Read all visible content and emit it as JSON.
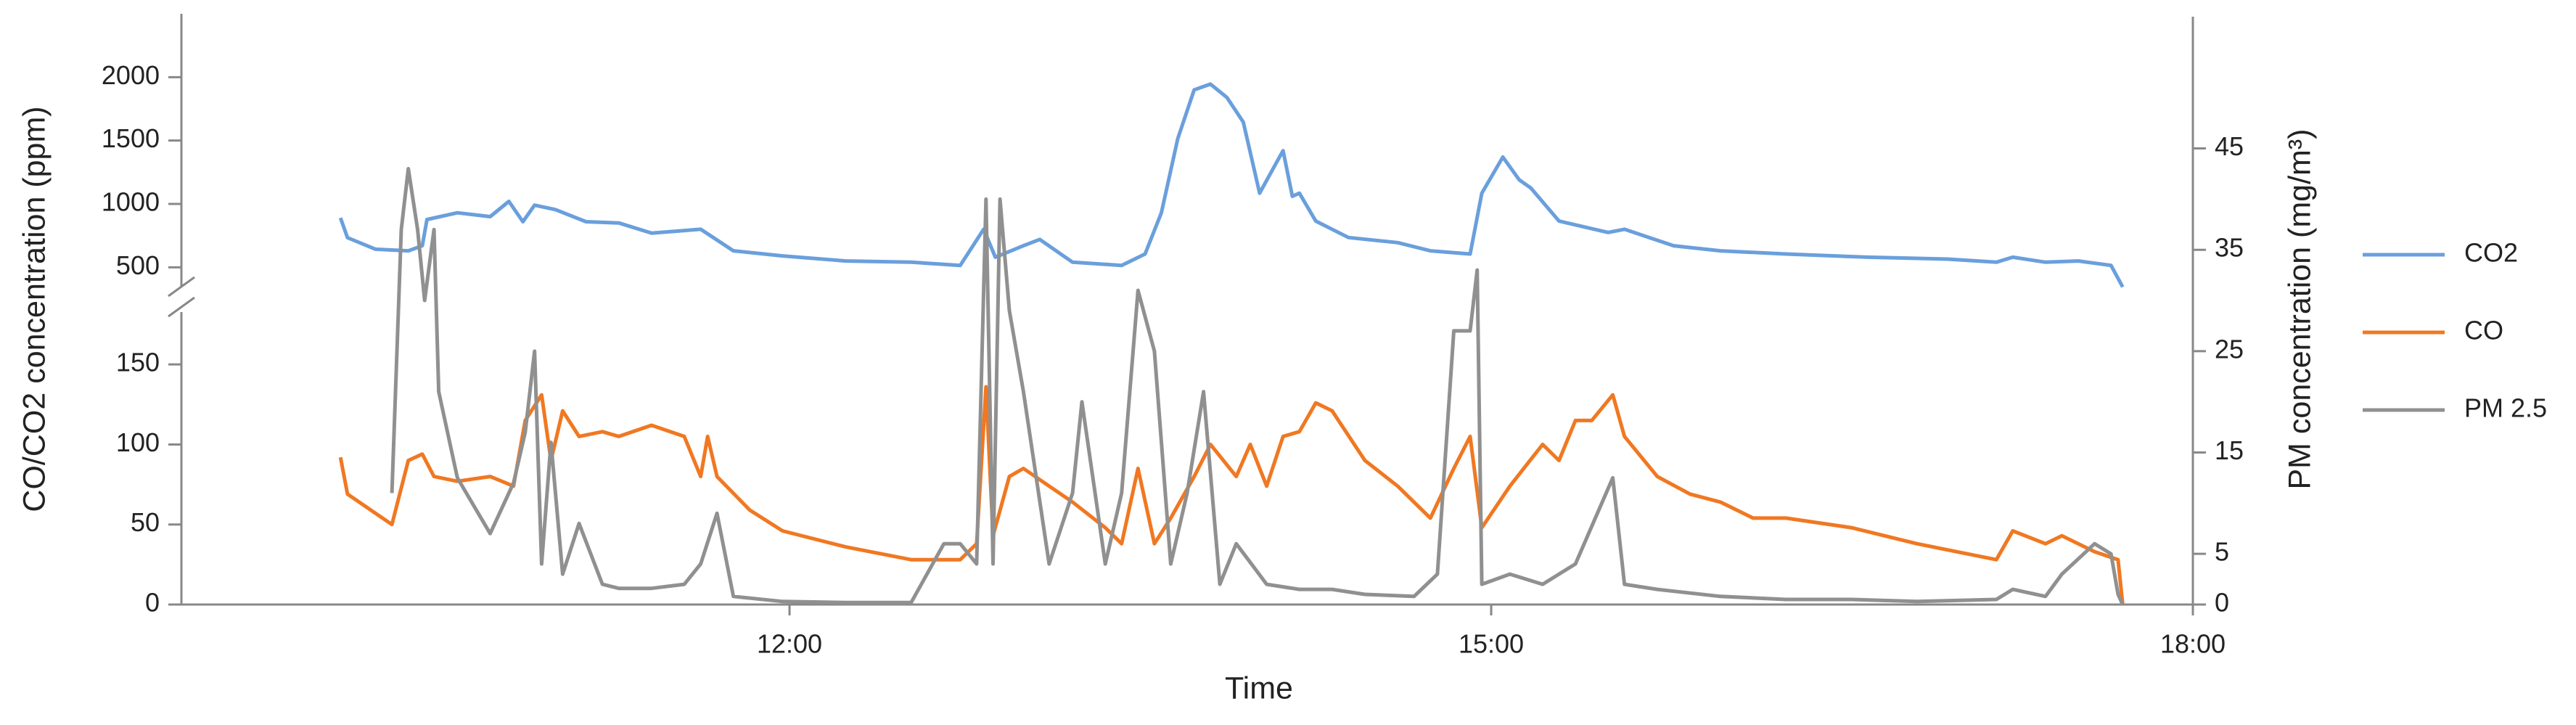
{
  "chart_data": {
    "type": "line",
    "xlabel": "Time",
    "ylabel": "CO/CO2 concentration (ppm)",
    "y2label": "PM concentration (mg/m³)",
    "xlim": [
      9.4,
      18
    ],
    "xticks": [
      {
        "value": 12,
        "label": "12:00"
      },
      {
        "value": 15,
        "label": "15:00"
      },
      {
        "value": 18,
        "label": "18:00"
      }
    ],
    "ylim": [
      0,
      180
    ],
    "yticks": [
      0,
      50,
      100,
      150
    ],
    "ylim_top": [
      250,
      2500
    ],
    "yticks_top": [
      500,
      1000,
      1500,
      2000
    ],
    "y2lim": [
      0,
      58
    ],
    "y2ticks": [
      0,
      5,
      15,
      25,
      35,
      45
    ],
    "legend": "right",
    "series": [
      {
        "name": "CO2",
        "color": "#6a9fdc",
        "axis": "y_top",
        "x": [
          10.08,
          10.11,
          10.23,
          10.37,
          10.43,
          10.45,
          10.58,
          10.72,
          10.8,
          10.86,
          10.91,
          11.0,
          11.13,
          11.27,
          11.41,
          11.62,
          11.76,
          11.97,
          12.24,
          12.52,
          12.73,
          12.83,
          12.88,
          13.0,
          13.07,
          13.21,
          13.42,
          13.52,
          13.59,
          13.66,
          13.73,
          13.8,
          13.87,
          13.94,
          14.01,
          14.08,
          14.11,
          14.15,
          14.18,
          14.25,
          14.39,
          14.6,
          14.74,
          14.91,
          14.96,
          15.05,
          15.12,
          15.17,
          15.29,
          15.5,
          15.57,
          15.78,
          15.98,
          16.26,
          16.61,
          16.95,
          17.16,
          17.23,
          17.37,
          17.51,
          17.65,
          17.7
        ],
        "values": [
          890,
          734,
          643,
          630,
          670,
          877,
          930,
          900,
          1020,
          860,
          990,
          955,
          860,
          850,
          770,
          800,
          630,
          590,
          550,
          540,
          515,
          800,
          580,
          670,
          720,
          540,
          515,
          605,
          930,
          1515,
          1900,
          1945,
          1840,
          1645,
          1085,
          1320,
          1420,
          1060,
          1085,
          865,
          735,
          695,
          630,
          605,
          1085,
          1370,
          1190,
          1125,
          865,
          775,
          800,
          670,
          630,
          605,
          580,
          565,
          540,
          580,
          540,
          550,
          515,
          345
        ]
      },
      {
        "name": "CO",
        "color": "#f07822",
        "axis": "y",
        "x": [
          10.08,
          10.11,
          10.23,
          10.3,
          10.37,
          10.43,
          10.48,
          10.58,
          10.72,
          10.82,
          10.87,
          10.94,
          10.98,
          11.03,
          11.1,
          11.2,
          11.27,
          11.41,
          11.55,
          11.62,
          11.65,
          11.69,
          11.83,
          11.97,
          12.24,
          12.52,
          12.73,
          12.8,
          12.84,
          12.87,
          12.94,
          13.0,
          13.11,
          13.21,
          13.35,
          13.42,
          13.49,
          13.56,
          13.63,
          13.73,
          13.8,
          13.91,
          13.97,
          14.04,
          14.11,
          14.18,
          14.25,
          14.32,
          14.46,
          14.6,
          14.74,
          14.84,
          14.91,
          14.96,
          15.08,
          15.22,
          15.29,
          15.36,
          15.43,
          15.52,
          15.57,
          15.71,
          15.85,
          15.98,
          16.12,
          16.26,
          16.54,
          16.82,
          17.16,
          17.23,
          17.37,
          17.44,
          17.58,
          17.68,
          17.7
        ],
        "values": [
          92,
          69,
          57,
          50,
          90,
          94,
          80,
          77,
          80,
          74,
          115,
          131,
          90,
          121,
          105,
          108,
          105,
          112,
          105,
          80,
          105,
          80,
          59,
          46,
          36,
          28,
          28,
          38,
          136,
          43,
          80,
          85,
          74,
          64,
          48,
          38,
          85,
          38,
          54,
          80,
          100,
          80,
          100,
          74,
          105,
          108,
          126,
          121,
          90,
          74,
          54,
          85,
          105,
          48,
          74,
          100,
          90,
          115,
          115,
          131,
          105,
          80,
          69,
          64,
          54,
          54,
          48,
          38,
          28,
          46,
          38,
          43,
          33,
          28,
          0
        ]
      },
      {
        "name": "PM 2.5",
        "color": "#909090",
        "axis": "y2",
        "x": [
          10.3,
          10.34,
          10.37,
          10.41,
          10.44,
          10.48,
          10.5,
          10.58,
          10.72,
          10.82,
          10.87,
          10.91,
          10.94,
          10.98,
          11.03,
          11.1,
          11.2,
          11.27,
          11.41,
          11.55,
          11.62,
          11.69,
          11.76,
          11.97,
          12.24,
          12.52,
          12.66,
          12.73,
          12.8,
          12.84,
          12.87,
          12.9,
          12.94,
          13.0,
          13.11,
          13.21,
          13.25,
          13.35,
          13.42,
          13.49,
          13.56,
          13.63,
          13.7,
          13.77,
          13.84,
          13.91,
          14.04,
          14.18,
          14.32,
          14.46,
          14.67,
          14.77,
          14.84,
          14.91,
          14.94,
          14.96,
          15.08,
          15.22,
          15.36,
          15.52,
          15.57,
          15.71,
          15.98,
          16.26,
          16.54,
          16.82,
          17.16,
          17.23,
          17.37,
          17.44,
          17.58,
          17.65,
          17.68,
          17.7
        ],
        "values": [
          11,
          37,
          43,
          37,
          30,
          37,
          21,
          12.5,
          7,
          12,
          17,
          25,
          4,
          16,
          3,
          8,
          2,
          1.6,
          1.6,
          2,
          4,
          9,
          0.8,
          0.3,
          0.2,
          0.2,
          6,
          6,
          4,
          40,
          4,
          40,
          29,
          21,
          4,
          11,
          20,
          4,
          11,
          31,
          25,
          4,
          11,
          21,
          2,
          6,
          2,
          1.5,
          1.5,
          1,
          0.8,
          3,
          27,
          27,
          33,
          2,
          3,
          2,
          4,
          12.5,
          2,
          1.5,
          0.8,
          0.5,
          0.5,
          0.3,
          0.5,
          1.5,
          0.8,
          3,
          6,
          5,
          1,
          0
        ]
      }
    ]
  }
}
